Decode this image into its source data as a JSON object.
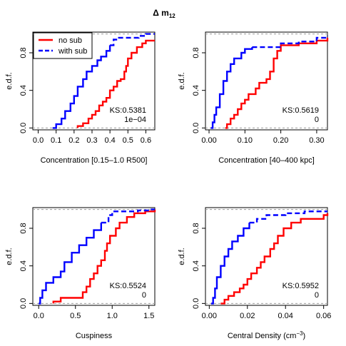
{
  "page": {
    "title_main": "Δ m",
    "title_sub": "12"
  },
  "chart_data": [
    {
      "type": "line",
      "panel": "top-left",
      "xlabel": "Concentration [0.15–1.0 R500]",
      "ylabel": "e.d.f.",
      "xlim": [
        -0.03,
        0.65
      ],
      "ylim": [
        -0.02,
        1.02
      ],
      "xticks": [
        0.0,
        0.1,
        0.2,
        0.3,
        0.4,
        0.5,
        0.6
      ],
      "xtick_labels": [
        "0.0",
        "0.1",
        "0.2",
        "0.3",
        "0.4",
        "0.5",
        "0.6"
      ],
      "yticks": [
        0.0,
        0.4,
        0.8
      ],
      "ytick_labels": [
        "0.0",
        "0.4",
        "0.8"
      ],
      "ks_text": "KS:0.5381",
      "p_text": "1e−04",
      "legend": {
        "placement": "top-left",
        "entries": [
          "no sub",
          "with sub"
        ]
      },
      "series": [
        {
          "name": "no sub",
          "color": "#ff0000",
          "style": "solid",
          "points": [
            [
              0.22,
              0.0
            ],
            [
              0.22,
              0.02
            ],
            [
              0.25,
              0.05
            ],
            [
              0.28,
              0.1
            ],
            [
              0.3,
              0.14
            ],
            [
              0.32,
              0.18
            ],
            [
              0.34,
              0.24
            ],
            [
              0.36,
              0.28
            ],
            [
              0.38,
              0.32
            ],
            [
              0.4,
              0.4
            ],
            [
              0.42,
              0.44
            ],
            [
              0.44,
              0.5
            ],
            [
              0.46,
              0.52
            ],
            [
              0.48,
              0.6
            ],
            [
              0.49,
              0.66
            ],
            [
              0.5,
              0.74
            ],
            [
              0.52,
              0.8
            ],
            [
              0.55,
              0.86
            ],
            [
              0.58,
              0.9
            ],
            [
              0.6,
              0.93
            ],
            [
              0.65,
              0.93
            ]
          ]
        },
        {
          "name": "with sub",
          "color": "#0000ff",
          "style": "solid-then-dashed",
          "points": [
            [
              0.08,
              0.0
            ],
            [
              0.1,
              0.04
            ],
            [
              0.13,
              0.1
            ],
            [
              0.15,
              0.18
            ],
            [
              0.18,
              0.26
            ],
            [
              0.2,
              0.34
            ],
            [
              0.22,
              0.44
            ],
            [
              0.25,
              0.52
            ],
            [
              0.27,
              0.6
            ],
            [
              0.3,
              0.66
            ],
            [
              0.33,
              0.72
            ],
            [
              0.35,
              0.76
            ],
            [
              0.38,
              0.82
            ],
            [
              0.4,
              0.88
            ],
            [
              0.42,
              0.94
            ],
            [
              0.45,
              0.96
            ],
            [
              0.5,
              0.96
            ],
            [
              0.56,
              0.98
            ],
            [
              0.6,
              1.0
            ],
            [
              0.65,
              1.0
            ]
          ]
        }
      ]
    },
    {
      "type": "line",
      "panel": "top-right",
      "xlabel": "Concentration [40–400 kpc]",
      "ylabel": "e.d.f.",
      "xlim": [
        -0.01,
        0.33
      ],
      "ylim": [
        -0.02,
        1.02
      ],
      "xticks": [
        0.0,
        0.1,
        0.2,
        0.3
      ],
      "xtick_labels": [
        "0.00",
        "0.10",
        "0.20",
        "0.30"
      ],
      "yticks": [
        0.0,
        0.4,
        0.8
      ],
      "ytick_labels": [
        "0.0",
        "0.4",
        "0.8"
      ],
      "ks_text": "KS:0.5619",
      "p_text": "0",
      "series": [
        {
          "name": "no sub",
          "color": "#ff0000",
          "style": "solid",
          "points": [
            [
              0.045,
              0.0
            ],
            [
              0.05,
              0.04
            ],
            [
              0.06,
              0.1
            ],
            [
              0.07,
              0.14
            ],
            [
              0.08,
              0.2
            ],
            [
              0.09,
              0.26
            ],
            [
              0.1,
              0.3
            ],
            [
              0.11,
              0.36
            ],
            [
              0.13,
              0.42
            ],
            [
              0.14,
              0.48
            ],
            [
              0.16,
              0.52
            ],
            [
              0.17,
              0.6
            ],
            [
              0.18,
              0.74
            ],
            [
              0.19,
              0.82
            ],
            [
              0.2,
              0.88
            ],
            [
              0.25,
              0.9
            ],
            [
              0.3,
              0.93
            ],
            [
              0.33,
              0.96
            ]
          ]
        },
        {
          "name": "with sub",
          "color": "#0000ff",
          "style": "solid-then-dashed",
          "points": [
            [
              0.005,
              0.0
            ],
            [
              0.01,
              0.06
            ],
            [
              0.015,
              0.14
            ],
            [
              0.02,
              0.22
            ],
            [
              0.03,
              0.36
            ],
            [
              0.04,
              0.5
            ],
            [
              0.05,
              0.6
            ],
            [
              0.06,
              0.68
            ],
            [
              0.07,
              0.74
            ],
            [
              0.09,
              0.8
            ],
            [
              0.1,
              0.84
            ],
            [
              0.12,
              0.86
            ],
            [
              0.15,
              0.86
            ],
            [
              0.2,
              0.9
            ],
            [
              0.25,
              0.92
            ],
            [
              0.3,
              0.96
            ],
            [
              0.33,
              0.98
            ]
          ]
        }
      ]
    },
    {
      "type": "line",
      "panel": "bottom-left",
      "xlabel": "Cuspiness",
      "ylabel": "e.d.f.",
      "xlim": [
        -0.08,
        1.58
      ],
      "ylim": [
        -0.02,
        1.02
      ],
      "xticks": [
        0.0,
        0.5,
        1.0,
        1.5
      ],
      "xtick_labels": [
        "0.0",
        "0.5",
        "1.0",
        "1.5"
      ],
      "yticks": [
        0.0,
        0.4,
        0.8
      ],
      "ytick_labels": [
        "0.0",
        "0.4",
        "0.8"
      ],
      "ks_text": "KS:0.5524",
      "p_text": "0",
      "series": [
        {
          "name": "no sub",
          "color": "#ff0000",
          "style": "solid",
          "points": [
            [
              0.2,
              0.0
            ],
            [
              0.2,
              0.02
            ],
            [
              0.3,
              0.06
            ],
            [
              0.5,
              0.06
            ],
            [
              0.6,
              0.12
            ],
            [
              0.65,
              0.18
            ],
            [
              0.7,
              0.26
            ],
            [
              0.75,
              0.32
            ],
            [
              0.8,
              0.4
            ],
            [
              0.85,
              0.46
            ],
            [
              0.9,
              0.56
            ],
            [
              0.93,
              0.64
            ],
            [
              0.97,
              0.72
            ],
            [
              1.05,
              0.8
            ],
            [
              1.1,
              0.86
            ],
            [
              1.2,
              0.92
            ],
            [
              1.3,
              0.96
            ],
            [
              1.45,
              0.98
            ],
            [
              1.58,
              1.0
            ]
          ]
        },
        {
          "name": "with sub",
          "color": "#0000ff",
          "style": "solid-then-dashed",
          "points": [
            [
              0.0,
              0.0
            ],
            [
              0.02,
              0.06
            ],
            [
              0.05,
              0.14
            ],
            [
              0.1,
              0.22
            ],
            [
              0.2,
              0.28
            ],
            [
              0.3,
              0.34
            ],
            [
              0.35,
              0.44
            ],
            [
              0.45,
              0.54
            ],
            [
              0.55,
              0.62
            ],
            [
              0.65,
              0.7
            ],
            [
              0.75,
              0.78
            ],
            [
              0.85,
              0.86
            ],
            [
              0.95,
              0.94
            ],
            [
              1.0,
              0.98
            ],
            [
              1.2,
              0.98
            ],
            [
              1.35,
              0.99
            ],
            [
              1.5,
              1.0
            ],
            [
              1.58,
              1.0
            ]
          ]
        }
      ]
    },
    {
      "type": "line",
      "panel": "bottom-right",
      "xlabel": "Central Density (cm",
      "xlabel_sup": "−3",
      "xlabel_end": ")",
      "ylabel": "e.d.f.",
      "xlim": [
        -0.002,
        0.062
      ],
      "ylim": [
        -0.02,
        1.02
      ],
      "xticks": [
        0.0,
        0.02,
        0.04,
        0.06
      ],
      "xtick_labels": [
        "0.00",
        "0.02",
        "0.04",
        "0.06"
      ],
      "yticks": [
        0.0,
        0.4,
        0.8
      ],
      "ytick_labels": [
        "0.0",
        "0.4",
        "0.8"
      ],
      "ks_text": "KS:0.5952",
      "p_text": "0",
      "series": [
        {
          "name": "no sub",
          "color": "#ff0000",
          "style": "solid",
          "points": [
            [
              0.006,
              0.0
            ],
            [
              0.008,
              0.04
            ],
            [
              0.01,
              0.08
            ],
            [
              0.013,
              0.12
            ],
            [
              0.016,
              0.16
            ],
            [
              0.018,
              0.2
            ],
            [
              0.02,
              0.26
            ],
            [
              0.022,
              0.32
            ],
            [
              0.025,
              0.38
            ],
            [
              0.027,
              0.44
            ],
            [
              0.029,
              0.5
            ],
            [
              0.032,
              0.58
            ],
            [
              0.034,
              0.64
            ],
            [
              0.036,
              0.72
            ],
            [
              0.039,
              0.8
            ],
            [
              0.043,
              0.86
            ],
            [
              0.048,
              0.9
            ],
            [
              0.055,
              0.9
            ],
            [
              0.06,
              0.94
            ],
            [
              0.062,
              0.96
            ]
          ]
        },
        {
          "name": "with sub",
          "color": "#0000ff",
          "style": "solid-then-dashed",
          "points": [
            [
              0.001,
              0.0
            ],
            [
              0.002,
              0.06
            ],
            [
              0.003,
              0.16
            ],
            [
              0.004,
              0.28
            ],
            [
              0.006,
              0.4
            ],
            [
              0.008,
              0.5
            ],
            [
              0.01,
              0.58
            ],
            [
              0.012,
              0.66
            ],
            [
              0.015,
              0.72
            ],
            [
              0.018,
              0.8
            ],
            [
              0.021,
              0.86
            ],
            [
              0.025,
              0.9
            ],
            [
              0.03,
              0.94
            ],
            [
              0.04,
              0.96
            ],
            [
              0.05,
              0.98
            ],
            [
              0.062,
              0.98
            ]
          ]
        }
      ]
    }
  ]
}
